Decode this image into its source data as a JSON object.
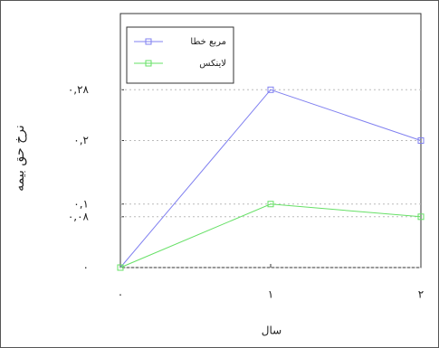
{
  "chart_data": {
    "type": "line",
    "x_label": "سال",
    "y_label": "نرخ حق بیمه",
    "x": [
      0,
      1,
      2
    ],
    "series": [
      {
        "name": "مربع خطا",
        "color": "#8080f0",
        "values": [
          0,
          0.28,
          0.2
        ]
      },
      {
        "name": "لاینکس",
        "color": "#66e066",
        "values": [
          0,
          0.1,
          0.08
        ]
      }
    ],
    "xlim": [
      0,
      2
    ],
    "xticks": [
      {
        "value": 0,
        "label": "۰"
      },
      {
        "value": 1,
        "label": "۱"
      },
      {
        "value": 2,
        "label": "۲"
      }
    ],
    "ylim": [
      0,
      0.4
    ],
    "yticks": [
      {
        "value": 0,
        "label": "۰"
      },
      {
        "value": 0.08,
        "label": "۰,۰۸"
      },
      {
        "value": 0.1,
        "label": "۰,۱"
      },
      {
        "value": 0.2,
        "label": "۰,۲"
      },
      {
        "value": 0.28,
        "label": "۰,۲۸"
      }
    ],
    "grid": true,
    "legend": "upper-left"
  }
}
